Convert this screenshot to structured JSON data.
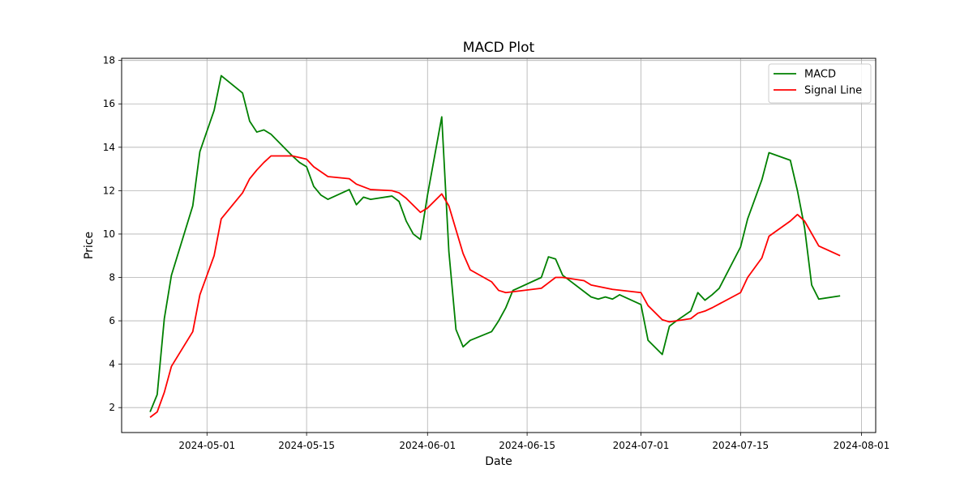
{
  "chart_data": {
    "type": "line",
    "title": "MACD Plot",
    "xlabel": "Date",
    "ylabel": "Price",
    "x_ticks": [
      "2024-05-01",
      "2024-05-15",
      "2024-06-01",
      "2024-06-15",
      "2024-07-01",
      "2024-07-15",
      "2024-08-01"
    ],
    "y_ticks": [
      2,
      4,
      6,
      8,
      10,
      12,
      14,
      16,
      18
    ],
    "xlim": [
      "2024-04-19",
      "2024-08-03"
    ],
    "ylim": [
      0.85,
      18.1
    ],
    "grid": true,
    "legend_position": "top-right",
    "series": [
      {
        "name": "MACD",
        "color": "#008000",
        "points": [
          [
            "2024-04-23",
            1.8
          ],
          [
            "2024-04-24",
            2.6
          ],
          [
            "2024-04-25",
            6.1
          ],
          [
            "2024-04-26",
            8.1
          ],
          [
            "2024-04-29",
            11.3
          ],
          [
            "2024-04-30",
            13.8
          ],
          [
            "2024-05-02",
            15.7
          ],
          [
            "2024-05-03",
            17.3
          ],
          [
            "2024-05-06",
            16.5
          ],
          [
            "2024-05-07",
            15.2
          ],
          [
            "2024-05-08",
            14.7
          ],
          [
            "2024-05-09",
            14.8
          ],
          [
            "2024-05-10",
            14.6
          ],
          [
            "2024-05-13",
            13.6
          ],
          [
            "2024-05-14",
            13.3
          ],
          [
            "2024-05-15",
            13.1
          ],
          [
            "2024-05-16",
            12.2
          ],
          [
            "2024-05-17",
            11.8
          ],
          [
            "2024-05-18",
            11.6
          ],
          [
            "2024-05-21",
            12.05
          ],
          [
            "2024-05-22",
            11.35
          ],
          [
            "2024-05-23",
            11.7
          ],
          [
            "2024-05-24",
            11.6
          ],
          [
            "2024-05-27",
            11.75
          ],
          [
            "2024-05-28",
            11.5
          ],
          [
            "2024-05-29",
            10.6
          ],
          [
            "2024-05-30",
            10.0
          ],
          [
            "2024-05-31",
            9.75
          ],
          [
            "2024-06-01",
            11.8
          ],
          [
            "2024-06-03",
            15.4
          ],
          [
            "2024-06-04",
            9.2
          ],
          [
            "2024-06-05",
            5.6
          ],
          [
            "2024-06-06",
            4.8
          ],
          [
            "2024-06-07",
            5.1
          ],
          [
            "2024-06-10",
            5.5
          ],
          [
            "2024-06-11",
            6.0
          ],
          [
            "2024-06-12",
            6.6
          ],
          [
            "2024-06-13",
            7.4
          ],
          [
            "2024-06-17",
            8.0
          ],
          [
            "2024-06-18",
            8.95
          ],
          [
            "2024-06-19",
            8.85
          ],
          [
            "2024-06-20",
            8.1
          ],
          [
            "2024-06-24",
            7.1
          ],
          [
            "2024-06-25",
            7.0
          ],
          [
            "2024-06-26",
            7.1
          ],
          [
            "2024-06-27",
            7.0
          ],
          [
            "2024-06-28",
            7.2
          ],
          [
            "2024-07-01",
            6.75
          ],
          [
            "2024-07-02",
            5.1
          ],
          [
            "2024-07-04",
            4.45
          ],
          [
            "2024-07-05",
            5.75
          ],
          [
            "2024-07-06",
            6.0
          ],
          [
            "2024-07-08",
            6.45
          ],
          [
            "2024-07-09",
            7.3
          ],
          [
            "2024-07-10",
            6.95
          ],
          [
            "2024-07-11",
            7.2
          ],
          [
            "2024-07-12",
            7.5
          ],
          [
            "2024-07-15",
            9.4
          ],
          [
            "2024-07-16",
            10.7
          ],
          [
            "2024-07-18",
            12.5
          ],
          [
            "2024-07-19",
            13.75
          ],
          [
            "2024-07-22",
            13.4
          ],
          [
            "2024-07-23",
            12.0
          ],
          [
            "2024-07-24",
            10.3
          ],
          [
            "2024-07-25",
            7.65
          ],
          [
            "2024-07-26",
            7.0
          ],
          [
            "2024-07-29",
            7.15
          ]
        ]
      },
      {
        "name": "Signal Line",
        "color": "#ff0000",
        "points": [
          [
            "2024-04-23",
            1.55
          ],
          [
            "2024-04-24",
            1.8
          ],
          [
            "2024-04-25",
            2.7
          ],
          [
            "2024-04-26",
            3.9
          ],
          [
            "2024-04-29",
            5.5
          ],
          [
            "2024-04-30",
            7.2
          ],
          [
            "2024-05-02",
            9.0
          ],
          [
            "2024-05-03",
            10.7
          ],
          [
            "2024-05-06",
            11.9
          ],
          [
            "2024-05-07",
            12.55
          ],
          [
            "2024-05-08",
            12.95
          ],
          [
            "2024-05-09",
            13.3
          ],
          [
            "2024-05-10",
            13.6
          ],
          [
            "2024-05-13",
            13.6
          ],
          [
            "2024-05-15",
            13.45
          ],
          [
            "2024-05-16",
            13.1
          ],
          [
            "2024-05-18",
            12.65
          ],
          [
            "2024-05-21",
            12.55
          ],
          [
            "2024-05-22",
            12.3
          ],
          [
            "2024-05-24",
            12.05
          ],
          [
            "2024-05-27",
            12.0
          ],
          [
            "2024-05-28",
            11.9
          ],
          [
            "2024-05-29",
            11.65
          ],
          [
            "2024-05-31",
            11.0
          ],
          [
            "2024-06-01",
            11.2
          ],
          [
            "2024-06-03",
            11.85
          ],
          [
            "2024-06-04",
            11.3
          ],
          [
            "2024-06-05",
            10.2
          ],
          [
            "2024-06-06",
            9.1
          ],
          [
            "2024-06-07",
            8.35
          ],
          [
            "2024-06-10",
            7.8
          ],
          [
            "2024-06-11",
            7.4
          ],
          [
            "2024-06-12",
            7.3
          ],
          [
            "2024-06-17",
            7.5
          ],
          [
            "2024-06-18",
            7.75
          ],
          [
            "2024-06-19",
            8.0
          ],
          [
            "2024-06-20",
            8.0
          ],
          [
            "2024-06-23",
            7.85
          ],
          [
            "2024-06-24",
            7.65
          ],
          [
            "2024-06-27",
            7.45
          ],
          [
            "2024-07-01",
            7.3
          ],
          [
            "2024-07-02",
            6.7
          ],
          [
            "2024-07-04",
            6.05
          ],
          [
            "2024-07-05",
            5.95
          ],
          [
            "2024-07-08",
            6.1
          ],
          [
            "2024-07-09",
            6.35
          ],
          [
            "2024-07-10",
            6.45
          ],
          [
            "2024-07-11",
            6.6
          ],
          [
            "2024-07-15",
            7.3
          ],
          [
            "2024-07-16",
            8.0
          ],
          [
            "2024-07-18",
            8.9
          ],
          [
            "2024-07-19",
            9.9
          ],
          [
            "2024-07-22",
            10.6
          ],
          [
            "2024-07-23",
            10.9
          ],
          [
            "2024-07-24",
            10.6
          ],
          [
            "2024-07-26",
            9.45
          ],
          [
            "2024-07-29",
            9.0
          ]
        ]
      }
    ]
  }
}
